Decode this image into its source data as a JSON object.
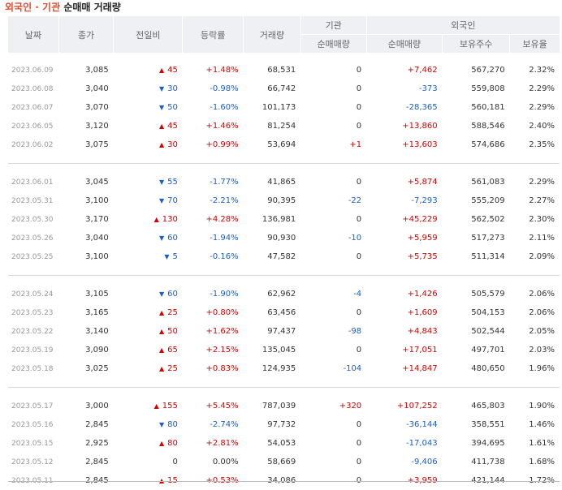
{
  "title": {
    "part1": "외국인 · 기관",
    "part2": "순매매 거래량"
  },
  "headers": {
    "date": "날짜",
    "close": "종가",
    "change": "전일비",
    "rate": "등락률",
    "volume": "거래량",
    "inst_group": "기관",
    "inst_net": "순매매량",
    "foreign_group": "외국인",
    "foreign_net": "순매매량",
    "foreign_hold": "보유주수",
    "foreign_ratio": "보유율"
  },
  "groups": [
    [
      {
        "date": "2023.06.09",
        "close": "3,085",
        "dir": "up",
        "change": "45",
        "rate": "+1.48%",
        "volume": "68,531",
        "inst": "0",
        "foreign": "+7,462",
        "hold": "567,270",
        "ratio": "2.32%"
      },
      {
        "date": "2023.06.08",
        "close": "3,040",
        "dir": "dn",
        "change": "30",
        "rate": "-0.98%",
        "volume": "66,742",
        "inst": "0",
        "foreign": "-373",
        "hold": "559,808",
        "ratio": "2.29%"
      },
      {
        "date": "2023.06.07",
        "close": "3,070",
        "dir": "dn",
        "change": "50",
        "rate": "-1.60%",
        "volume": "101,173",
        "inst": "0",
        "foreign": "-28,365",
        "hold": "560,181",
        "ratio": "2.29%"
      },
      {
        "date": "2023.06.05",
        "close": "3,120",
        "dir": "up",
        "change": "45",
        "rate": "+1.46%",
        "volume": "81,254",
        "inst": "0",
        "foreign": "+13,860",
        "hold": "588,546",
        "ratio": "2.40%"
      },
      {
        "date": "2023.06.02",
        "close": "3,075",
        "dir": "up",
        "change": "30",
        "rate": "+0.99%",
        "volume": "53,694",
        "inst": "+1",
        "foreign": "+13,603",
        "hold": "574,686",
        "ratio": "2.35%"
      }
    ],
    [
      {
        "date": "2023.06.01",
        "close": "3,045",
        "dir": "dn",
        "change": "55",
        "rate": "-1.77%",
        "volume": "41,865",
        "inst": "0",
        "foreign": "+5,874",
        "hold": "561,083",
        "ratio": "2.29%"
      },
      {
        "date": "2023.05.31",
        "close": "3,100",
        "dir": "dn",
        "change": "70",
        "rate": "-2.21%",
        "volume": "90,395",
        "inst": "-22",
        "foreign": "-7,293",
        "hold": "555,209",
        "ratio": "2.27%"
      },
      {
        "date": "2023.05.30",
        "close": "3,170",
        "dir": "up",
        "change": "130",
        "rate": "+4.28%",
        "volume": "136,981",
        "inst": "0",
        "foreign": "+45,229",
        "hold": "562,502",
        "ratio": "2.30%"
      },
      {
        "date": "2023.05.26",
        "close": "3,040",
        "dir": "dn",
        "change": "60",
        "rate": "-1.94%",
        "volume": "90,930",
        "inst": "-10",
        "foreign": "+5,959",
        "hold": "517,273",
        "ratio": "2.11%"
      },
      {
        "date": "2023.05.25",
        "close": "3,100",
        "dir": "dn",
        "change": "5",
        "rate": "-0.16%",
        "volume": "47,582",
        "inst": "0",
        "foreign": "+5,735",
        "hold": "511,314",
        "ratio": "2.09%"
      }
    ],
    [
      {
        "date": "2023.05.24",
        "close": "3,105",
        "dir": "dn",
        "change": "60",
        "rate": "-1.90%",
        "volume": "62,962",
        "inst": "-4",
        "foreign": "+1,426",
        "hold": "505,579",
        "ratio": "2.06%"
      },
      {
        "date": "2023.05.23",
        "close": "3,165",
        "dir": "up",
        "change": "25",
        "rate": "+0.80%",
        "volume": "63,456",
        "inst": "0",
        "foreign": "+1,609",
        "hold": "504,153",
        "ratio": "2.06%"
      },
      {
        "date": "2023.05.22",
        "close": "3,140",
        "dir": "up",
        "change": "50",
        "rate": "+1.62%",
        "volume": "97,437",
        "inst": "-98",
        "foreign": "+4,843",
        "hold": "502,544",
        "ratio": "2.05%"
      },
      {
        "date": "2023.05.19",
        "close": "3,090",
        "dir": "up",
        "change": "65",
        "rate": "+2.15%",
        "volume": "135,045",
        "inst": "0",
        "foreign": "+17,051",
        "hold": "497,701",
        "ratio": "2.03%"
      },
      {
        "date": "2023.05.18",
        "close": "3,025",
        "dir": "up",
        "change": "25",
        "rate": "+0.83%",
        "volume": "124,935",
        "inst": "-104",
        "foreign": "+14,847",
        "hold": "480,650",
        "ratio": "1.96%"
      }
    ],
    [
      {
        "date": "2023.05.17",
        "close": "3,000",
        "dir": "up",
        "change": "155",
        "rate": "+5.45%",
        "volume": "787,039",
        "inst": "+320",
        "foreign": "+107,252",
        "hold": "465,803",
        "ratio": "1.90%"
      },
      {
        "date": "2023.05.16",
        "close": "2,845",
        "dir": "dn",
        "change": "80",
        "rate": "-2.74%",
        "volume": "97,732",
        "inst": "0",
        "foreign": "-36,144",
        "hold": "358,551",
        "ratio": "1.46%"
      },
      {
        "date": "2023.05.15",
        "close": "2,925",
        "dir": "up",
        "change": "80",
        "rate": "+2.81%",
        "volume": "54,053",
        "inst": "0",
        "foreign": "-17,043",
        "hold": "394,695",
        "ratio": "1.61%"
      },
      {
        "date": "2023.05.12",
        "close": "2,845",
        "dir": "none",
        "change": "0",
        "rate": "0.00%",
        "volume": "58,669",
        "inst": "0",
        "foreign": "-9,406",
        "hold": "411,738",
        "ratio": "1.68%"
      },
      {
        "date": "2023.05.11",
        "close": "2,845",
        "dir": "up",
        "change": "15",
        "rate": "+0.53%",
        "volume": "34,086",
        "inst": "0",
        "foreign": "+3,959",
        "hold": "421,144",
        "ratio": "1.72%"
      }
    ]
  ],
  "icons": {
    "up": "triangle-up-icon",
    "dn": "triangle-down-icon"
  },
  "colors": {
    "up": "#d60000",
    "down": "#1a5fc7",
    "title_accent": "#e8492c"
  }
}
